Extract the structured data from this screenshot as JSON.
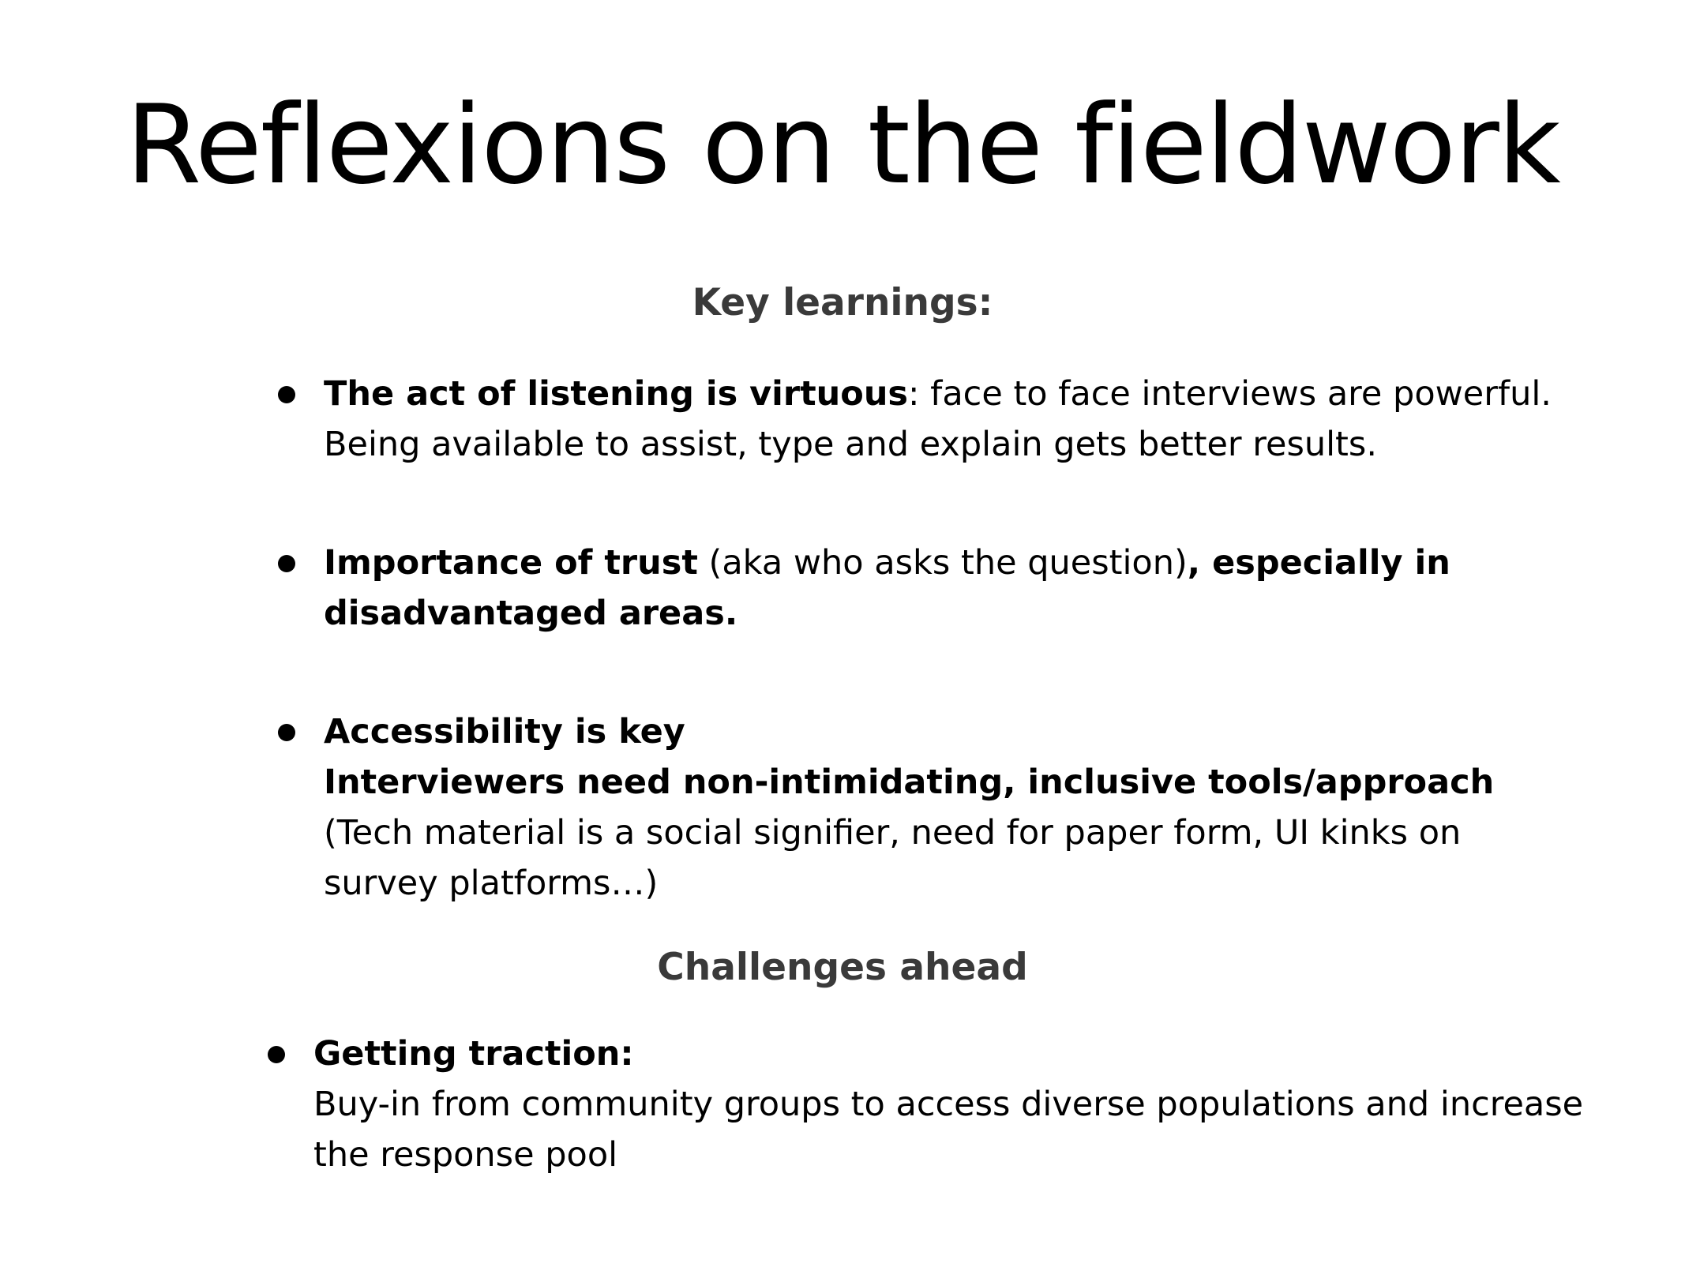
{
  "slide": {
    "title": "Reflexions on the fieldwork",
    "sections": {
      "key_learnings": {
        "heading": "Key learnings:",
        "items": [
          {
            "bold_lead": "The act of listening is virtuous",
            "text_1": ": face to face interviews are powerful.",
            "text_2": "Being available to assist, type and explain gets better results."
          },
          {
            "bold_lead": "Importance of trust",
            "text_1": " (aka who asks the question)",
            "bold_tail_1": ", especially in",
            "bold_tail_2": "disadvantaged areas."
          },
          {
            "bold_line_1": "Accessibility is key",
            "bold_line_2": "Interviewers need non-intimidating, inclusive tools/approach",
            "text_1": "(Tech material is a social signifier, need for paper form, UI kinks on",
            "text_2": "survey platforms…)"
          }
        ]
      },
      "challenges": {
        "heading": "Challenges ahead",
        "items": [
          {
            "bold_lead": "Getting traction:",
            "text_1": "Buy-in from community groups to access diverse populations and increase",
            "text_2": "the response pool"
          }
        ]
      }
    }
  }
}
